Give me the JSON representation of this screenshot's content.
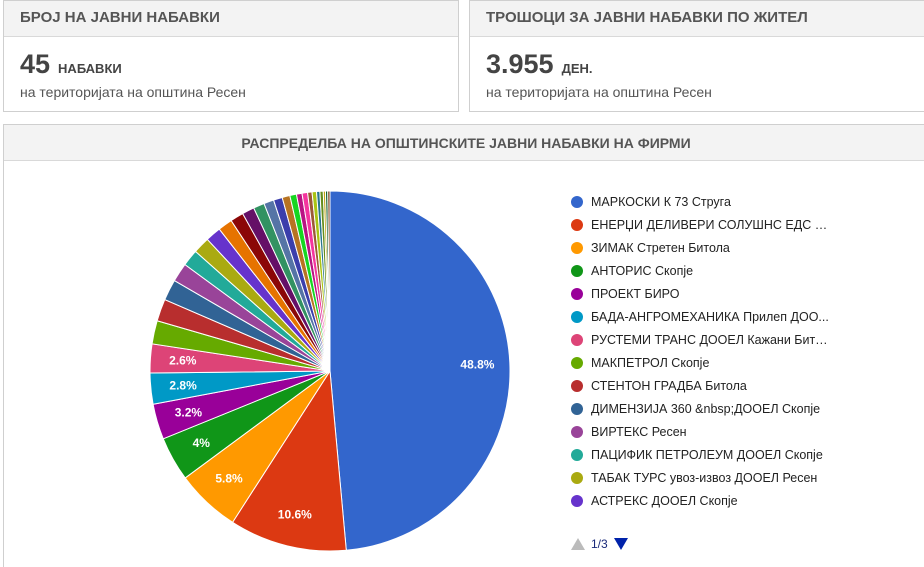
{
  "stat_count": {
    "title": "БРОЈ НА ЈАВНИ НАБАВКИ",
    "value": "45",
    "unit": "НАБАВКИ",
    "subtitle": "на територијата на општина Ресен"
  },
  "stat_cost": {
    "title": "ТРОШОЦИ ЗА ЈАВНИ НАБАВКИ ПО ЖИТЕЛ",
    "value": "3.955",
    "unit": "ДЕН.",
    "subtitle": "на територијата на општина Ресен"
  },
  "chart_data": {
    "type": "pie",
    "title": "РАСПРЕДЕЛБА НА ОПШТИНСКИТЕ ЈАВНИ НАБАВКИ НА ФИРМИ",
    "slices": [
      {
        "label": "МАРКОСКИ К 73 Струга",
        "value": 48.8,
        "color": "#3366cc",
        "show_label": true
      },
      {
        "label": "ЕНЕРЏИ ДЕЛИВЕРИ СОЛУШНС ЕДС Д...",
        "value": 10.6,
        "color": "#dc3912",
        "show_label": true
      },
      {
        "label": "ЗИМАК Стретен Битола",
        "value": 5.8,
        "color": "#ff9900",
        "show_label": true
      },
      {
        "label": "АНТОРИС Скопје",
        "value": 4.0,
        "color": "#109618",
        "show_label": true
      },
      {
        "label": "ПРОЕКТ БИРО",
        "value": 3.2,
        "color": "#990099",
        "show_label": true
      },
      {
        "label": "БАДА-АНГРОМЕХАНИКА Прилеп ДОО...",
        "value": 2.8,
        "color": "#0099c6",
        "show_label": true
      },
      {
        "label": "РУСТЕМИ ТРАНС ДООЕЛ Кажани Бито...",
        "value": 2.6,
        "color": "#dd4477",
        "show_label": true
      },
      {
        "label": "МАКПЕТРОЛ Скопје",
        "value": 2.1,
        "color": "#66aa00",
        "show_label": false
      },
      {
        "label": "СТЕНТОН ГРАДБА Битола",
        "value": 2.0,
        "color": "#b82e2e",
        "show_label": false
      },
      {
        "label": "ДИМЕНЗИЈА 360 &nbsp;ДООЕЛ Скопје",
        "value": 1.9,
        "color": "#316395",
        "show_label": false
      },
      {
        "label": "ВИРТЕКС Ресен",
        "value": 1.7,
        "color": "#994499",
        "show_label": false
      },
      {
        "label": "ПАЦИФИК ПЕТРОЛЕУМ ДООЕЛ Скопје",
        "value": 1.5,
        "color": "#22aa99",
        "show_label": false
      },
      {
        "label": "ТАБАК ТУРС увоз-извоз ДООЕЛ Ресен",
        "value": 1.5,
        "color": "#aaaa11",
        "show_label": false
      },
      {
        "label": "АСТРЕКС ДООЕЛ Скопје",
        "value": 1.4,
        "color": "#6633cc",
        "show_label": false
      },
      {
        "value": 1.3,
        "color": "#e67300",
        "show_label": false
      },
      {
        "value": 1.2,
        "color": "#8b0707",
        "show_label": false
      },
      {
        "value": 1.1,
        "color": "#651067",
        "show_label": false
      },
      {
        "value": 1.0,
        "color": "#329262",
        "show_label": false
      },
      {
        "value": 0.9,
        "color": "#5574a6",
        "show_label": false
      },
      {
        "value": 0.8,
        "color": "#3b3eac",
        "show_label": false
      },
      {
        "value": 0.7,
        "color": "#b77322",
        "show_label": false
      },
      {
        "value": 0.6,
        "color": "#16d620",
        "show_label": false
      },
      {
        "value": 0.5,
        "color": "#b91383",
        "show_label": false
      },
      {
        "value": 0.5,
        "color": "#f4359e",
        "show_label": false
      },
      {
        "value": 0.4,
        "color": "#9c5935",
        "show_label": false
      },
      {
        "value": 0.4,
        "color": "#a9c413",
        "show_label": false
      },
      {
        "value": 0.3,
        "color": "#2a778d",
        "show_label": false
      },
      {
        "value": 0.3,
        "color": "#668d1c",
        "show_label": false
      },
      {
        "value": 0.2,
        "color": "#bea413",
        "show_label": false
      },
      {
        "value": 0.2,
        "color": "#0c5922",
        "show_label": false
      },
      {
        "value": 0.2,
        "color": "#743411",
        "show_label": false
      }
    ],
    "legend_position": "right",
    "legend_page": "1/3"
  }
}
